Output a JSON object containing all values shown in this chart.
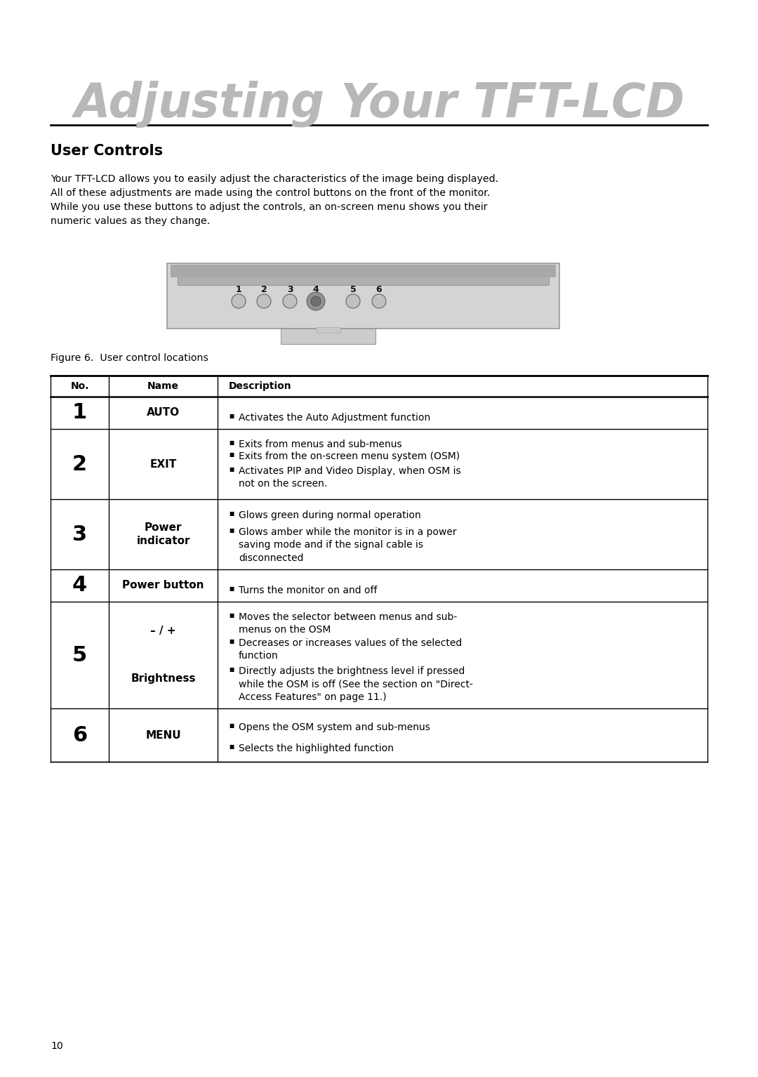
{
  "title": "Adjusting Your TFT-LCD",
  "section_title": "User Controls",
  "body_text": "Your TFT-LCD allows you to easily adjust the characteristics of the image being displayed.\nAll of these adjustments are made using the control buttons on the front of the monitor.\nWhile you use these buttons to adjust the controls, an on-screen menu shows you their\nnumeric values as they change.",
  "figure_caption": "Figure 6.  User control locations",
  "page_number": "10",
  "table_header": [
    "No.",
    "Name",
    "Description"
  ],
  "table_rows": [
    {
      "no": "1",
      "name": "AUTO",
      "desc_bullets": [
        "Activates the Auto Adjustment function"
      ]
    },
    {
      "no": "2",
      "name": "EXIT",
      "desc_bullets": [
        "Exits from menus and sub-menus",
        "Exits from the on-screen menu system (OSM)",
        "Activates PIP and Video Display, when OSM is\nnot on the screen."
      ]
    },
    {
      "no": "3",
      "name": "Power\nindicator",
      "desc_bullets": [
        "Glows green during normal operation",
        "Glows amber while the monitor is in a power\nsaving mode and if the signal cable is\ndisconnected"
      ]
    },
    {
      "no": "4",
      "name": "Power button",
      "desc_bullets": [
        "Turns the monitor on and off"
      ]
    },
    {
      "no": "5",
      "name_part1": "– / +",
      "name_part2": "Brightness",
      "desc_bullets": [
        "Moves the selector between menus and sub-\nmenus on the OSM",
        "Decreases or increases values of the selected\nfunction",
        "Directly adjusts the brightness level if pressed\nwhile the OSM is off (See the section on \"Direct-\nAccess Features\" on page 11.)"
      ]
    },
    {
      "no": "6",
      "name": "MENU",
      "desc_bullets": [
        "Opens the OSM system and sub-menus",
        "Selects the highlighted function"
      ]
    }
  ],
  "bg_color": "#ffffff",
  "title_color": "#b8b8b8",
  "text_color": "#000000"
}
